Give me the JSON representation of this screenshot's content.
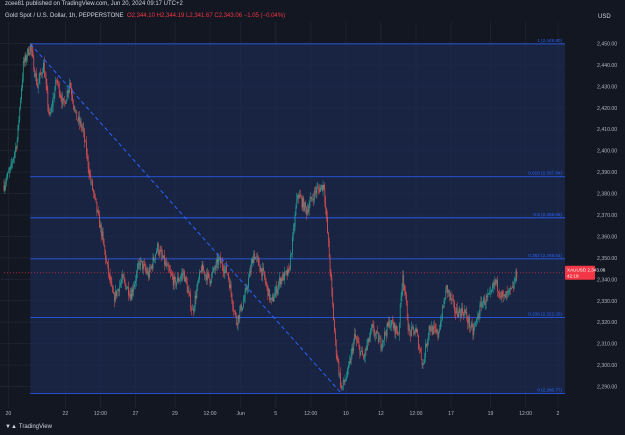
{
  "header": {
    "publisher": "zcee81 published on TradingView.com, Jun 20, 2024 09:17 UTC+2",
    "symbol": "Gold Spot / U.S. Dollar, 1h, PEPPERSTONE",
    "ohlc": "O2,344.10 H2,344.19 L2,341.67 C2,343.06 −1.05 (−0.04%)",
    "currency": "USD"
  },
  "footer": {
    "logo_label": "TradingView"
  },
  "colors": {
    "background": "#131722",
    "band": "#1c2a4d",
    "up": "#26a69a",
    "down": "#ef5350",
    "fib": "#2962ff",
    "price_tag": "#f23645"
  },
  "chart_data": {
    "type": "candlestick",
    "ylim": [
      2280,
      2460
    ],
    "y_ticks": [
      2290,
      2300,
      2310,
      2320,
      2330,
      2340,
      2350,
      2360,
      2370,
      2380,
      2390,
      2400,
      2410,
      2420,
      2430,
      2440,
      2450
    ],
    "y_tick_labels": [
      "2,290.00",
      "2,300.00",
      "2,310.00",
      "2,320.00",
      "2,330.00",
      "2,340.00",
      "2,350.00",
      "2,360.00",
      "2,370.00",
      "2,380.00",
      "2,390.00",
      "2,400.00",
      "2,410.00",
      "2,420.00",
      "2,430.00",
      "2,440.00",
      "2,450.00"
    ],
    "x_ticks": [
      {
        "i": 5,
        "label": "20"
      },
      {
        "i": 70,
        "label": "22"
      },
      {
        "i": 110,
        "label": "12:00"
      },
      {
        "i": 150,
        "label": "27"
      },
      {
        "i": 195,
        "label": "29"
      },
      {
        "i": 235,
        "label": "12:00"
      },
      {
        "i": 270,
        "label": "Jun"
      },
      {
        "i": 310,
        "label": "5"
      },
      {
        "i": 350,
        "label": "12:00"
      },
      {
        "i": 390,
        "label": "10"
      },
      {
        "i": 430,
        "label": "12"
      },
      {
        "i": 470,
        "label": "12:00"
      },
      {
        "i": 510,
        "label": "17"
      },
      {
        "i": 555,
        "label": "19"
      },
      {
        "i": 595,
        "label": "12:00"
      },
      {
        "i": 632,
        "label": "2"
      }
    ],
    "fib_levels": [
      {
        "price": 2449.8,
        "label": "1 (2,449.80)"
      },
      {
        "price": 2387.84,
        "label": "0.618 (2,387.84)"
      },
      {
        "price": 2368.69,
        "label": "0.5 (2,368.69)"
      },
      {
        "price": 2349.54,
        "label": "0.382 (2,349.54)"
      },
      {
        "price": 2322.26,
        "label": "0.236 (2,322.26)"
      },
      {
        "price": 2286.77,
        "label": "0 (2,286.77)"
      }
    ],
    "trendline": {
      "from": {
        "i": 30,
        "price": 2449.8
      },
      "to": {
        "i": 385,
        "price": 2286.77
      }
    },
    "last_price": {
      "symbol": "XAUUSD",
      "price": 2343.06,
      "label": "2,343.06",
      "countdown": "42:19"
    },
    "path": [
      [
        0,
        2384
      ],
      [
        8,
        2392
      ],
      [
        15,
        2405
      ],
      [
        22,
        2440
      ],
      [
        30,
        2449
      ],
      [
        38,
        2430
      ],
      [
        45,
        2440
      ],
      [
        52,
        2415
      ],
      [
        60,
        2433
      ],
      [
        68,
        2421
      ],
      [
        75,
        2432
      ],
      [
        82,
        2416
      ],
      [
        90,
        2410
      ],
      [
        98,
        2388
      ],
      [
        105,
        2374
      ],
      [
        112,
        2360
      ],
      [
        118,
        2345
      ],
      [
        125,
        2331
      ],
      [
        135,
        2340
      ],
      [
        145,
        2333
      ],
      [
        155,
        2348
      ],
      [
        165,
        2342
      ],
      [
        175,
        2355
      ],
      [
        185,
        2346
      ],
      [
        195,
        2338
      ],
      [
        205,
        2343
      ],
      [
        215,
        2325
      ],
      [
        225,
        2345
      ],
      [
        235,
        2340
      ],
      [
        245,
        2349
      ],
      [
        255,
        2343
      ],
      [
        265,
        2320
      ],
      [
        275,
        2332
      ],
      [
        285,
        2352
      ],
      [
        295,
        2343
      ],
      [
        305,
        2329
      ],
      [
        315,
        2340
      ],
      [
        325,
        2343
      ],
      [
        335,
        2380
      ],
      [
        345,
        2372
      ],
      [
        355,
        2381
      ],
      [
        365,
        2384
      ],
      [
        372,
        2345
      ],
      [
        378,
        2310
      ],
      [
        385,
        2289
      ],
      [
        392,
        2296
      ],
      [
        400,
        2313
      ],
      [
        410,
        2303
      ],
      [
        420,
        2317
      ],
      [
        430,
        2310
      ],
      [
        440,
        2320
      ],
      [
        450,
        2315
      ],
      [
        455,
        2343
      ],
      [
        462,
        2315
      ],
      [
        470,
        2316
      ],
      [
        478,
        2300
      ],
      [
        485,
        2318
      ],
      [
        495,
        2314
      ],
      [
        505,
        2336
      ],
      [
        515,
        2325
      ],
      [
        525,
        2325
      ],
      [
        535,
        2315
      ],
      [
        545,
        2329
      ],
      [
        555,
        2332
      ],
      [
        560,
        2339
      ],
      [
        570,
        2331
      ],
      [
        580,
        2335
      ],
      [
        585,
        2343
      ]
    ]
  }
}
